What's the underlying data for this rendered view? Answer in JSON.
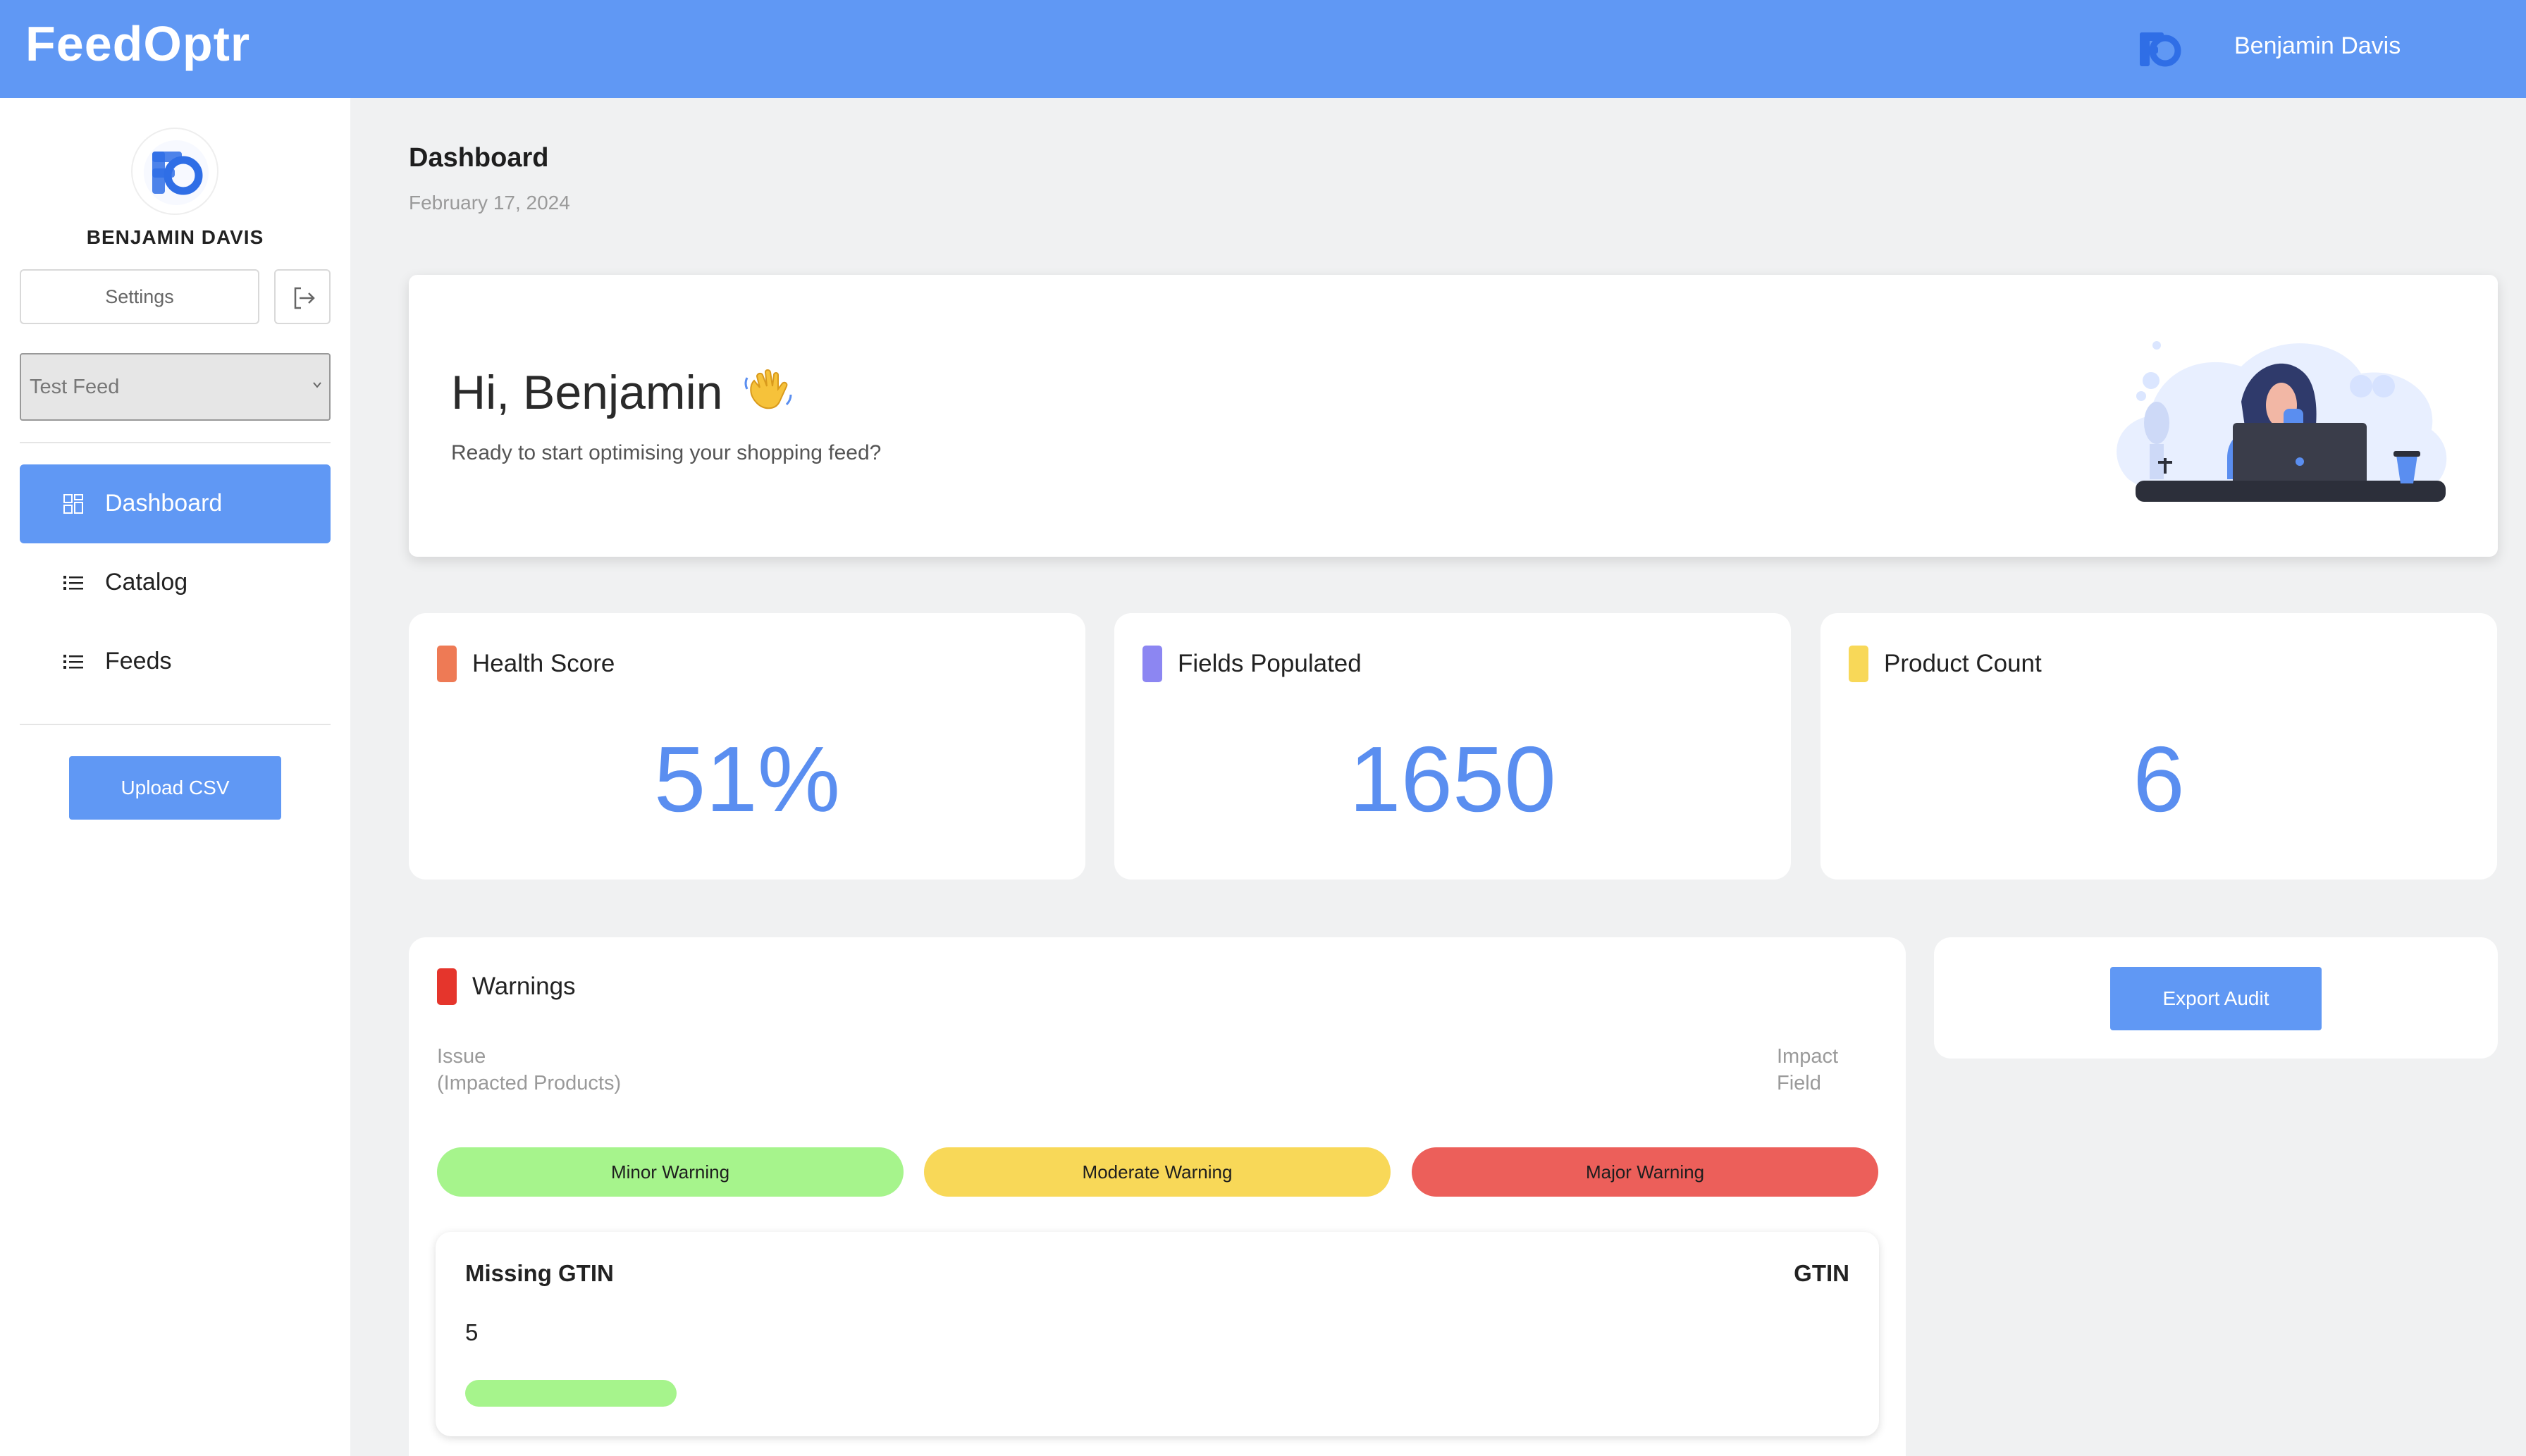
{
  "app": {
    "name": "FeedOptr",
    "user_name": "Benjamin Davis"
  },
  "sidebar": {
    "username": "BENJAMIN DAVIS",
    "settings_label": "Settings",
    "feed_select": {
      "value": "Test Feed"
    },
    "nav": [
      {
        "label": "Dashboard",
        "icon": "grid-icon",
        "active": true
      },
      {
        "label": "Catalog",
        "icon": "list-icon",
        "active": false
      },
      {
        "label": "Feeds",
        "icon": "list-icon",
        "active": false
      }
    ],
    "upload_label": "Upload CSV"
  },
  "page": {
    "title": "Dashboard",
    "date": "February 17, 2024"
  },
  "hero": {
    "greeting": "Hi, Benjamin",
    "subtitle": "Ready to start optimising your shopping feed?"
  },
  "stats": [
    {
      "label": "Health Score",
      "value": "51%",
      "color": "#ee7a55"
    },
    {
      "label": "Fields Populated",
      "value": "1650",
      "color": "#8c86f2"
    },
    {
      "label": "Product Count",
      "value": "6",
      "color": "#f8d858"
    }
  ],
  "warnings": {
    "title": "Warnings",
    "color": "#e5352c",
    "col_issue": "Issue",
    "col_issue_sub": "(Impacted Products)",
    "col_impact": "Impact",
    "col_impact_sub": "Field",
    "levels": [
      {
        "label": "Minor Warning",
        "color": "#a6f48c"
      },
      {
        "label": "Moderate Warning",
        "color": "#f8d858"
      },
      {
        "label": "Major Warning",
        "color": "#ec5f5a"
      }
    ],
    "issues": [
      {
        "title": "Missing GTIN",
        "field": "GTIN",
        "count": "5",
        "severity": "minor"
      }
    ]
  },
  "export": {
    "label": "Export Audit"
  }
}
